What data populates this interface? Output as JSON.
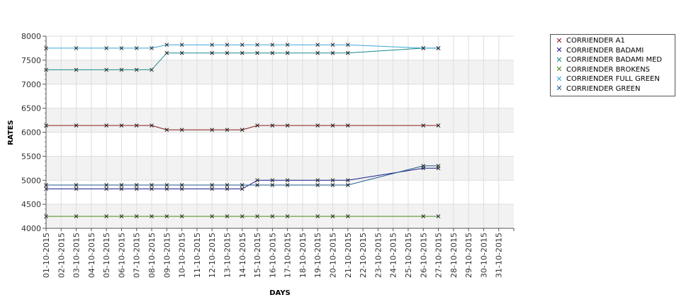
{
  "chart_data": {
    "type": "line",
    "title": "",
    "xlabel": "DAYS",
    "ylabel": "RATES",
    "ylim": [
      4000,
      8000
    ],
    "yticks": [
      4000,
      4500,
      5000,
      5500,
      6000,
      6500,
      7000,
      7500,
      8000
    ],
    "categories": [
      "01-10-2015",
      "02-10-2015",
      "03-10-2015",
      "04-10-2015",
      "05-10-2015",
      "06-10-2015",
      "07-10-2015",
      "08-10-2015",
      "09-10-2015",
      "10-10-2015",
      "11-10-2015",
      "12-10-2015",
      "13-10-2015",
      "14-10-2015",
      "15-10-2015",
      "16-10-2015",
      "17-10-2015",
      "18-10-2015",
      "19-10-2015",
      "20-10-2015",
      "21-10-2015",
      "22-10-2015",
      "23-10-2015",
      "24-10-2015",
      "25-10-2015",
      "26-10-2015",
      "27-10-2015",
      "28-10-2015",
      "29-10-2015",
      "30-10-2015",
      "31-10-2015"
    ],
    "grid": true,
    "alternating_bands": true,
    "legend_position": "right",
    "series": [
      {
        "name": "CORRIENDER A1",
        "color": "#8b1a1a",
        "marker": "x",
        "values": [
          6140,
          null,
          6140,
          null,
          6140,
          6140,
          6140,
          6140,
          6050,
          6050,
          null,
          6050,
          6050,
          6050,
          6140,
          6140,
          6140,
          null,
          6140,
          6140,
          6140,
          null,
          null,
          null,
          null,
          6140,
          6140,
          null,
          null,
          null,
          null
        ]
      },
      {
        "name": "CORRIENDER BADAMI",
        "color": "#1a1a8b",
        "marker": "x",
        "values": [
          4820,
          null,
          4820,
          null,
          4820,
          4820,
          4820,
          4820,
          4820,
          4820,
          null,
          4820,
          4820,
          4820,
          5000,
          5000,
          5000,
          null,
          5000,
          5000,
          5000,
          null,
          null,
          null,
          null,
          5250,
          5250,
          null,
          null,
          null,
          null
        ]
      },
      {
        "name": "CORRIENDER BADAMI MED",
        "color": "#1a8b8b",
        "marker": "x",
        "values": [
          7300,
          null,
          7300,
          null,
          7300,
          7300,
          7300,
          7300,
          7650,
          7650,
          null,
          7650,
          7650,
          7650,
          7650,
          7650,
          7650,
          null,
          7650,
          7650,
          7650,
          null,
          null,
          null,
          null,
          7750,
          7750,
          null,
          null,
          null,
          null
        ]
      },
      {
        "name": "CORRIENDER BROKENS",
        "color": "#4a8b1a",
        "marker": "x",
        "values": [
          4250,
          null,
          4250,
          null,
          4250,
          4250,
          4250,
          4250,
          4250,
          4250,
          null,
          4250,
          4250,
          4250,
          4250,
          4250,
          4250,
          null,
          4250,
          4250,
          4250,
          null,
          null,
          null,
          null,
          4250,
          4250,
          null,
          null,
          null,
          null
        ]
      },
      {
        "name": "CORRIENDER FULL GREEN",
        "color": "#3aa6d8",
        "marker": "x",
        "values": [
          7750,
          null,
          7750,
          null,
          7750,
          7750,
          7750,
          7750,
          7820,
          7820,
          null,
          7820,
          7820,
          7820,
          7820,
          7820,
          7820,
          null,
          7820,
          7820,
          7820,
          null,
          null,
          null,
          null,
          7750,
          7750,
          null,
          null,
          null,
          null
        ]
      },
      {
        "name": "CORRIENDER GREEN",
        "color": "#1a5a8b",
        "marker": "x",
        "values": [
          4900,
          null,
          4900,
          null,
          4900,
          4900,
          4900,
          4900,
          4900,
          4900,
          null,
          4900,
          4900,
          4900,
          4900,
          4900,
          4900,
          null,
          4900,
          4900,
          4900,
          null,
          null,
          null,
          null,
          5300,
          5300,
          null,
          null,
          null,
          null
        ]
      }
    ]
  }
}
